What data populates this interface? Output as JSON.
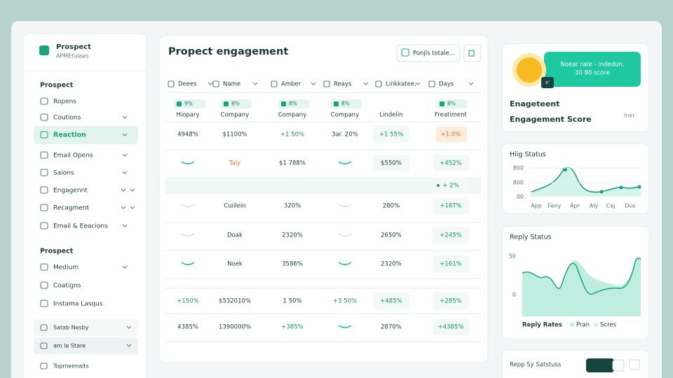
{
  "sidebar": {
    "brand": "Prospect",
    "subtitle": "APMEtulaes",
    "sections": [
      {
        "title": "Prospect",
        "items": [
          "Ropens",
          "Coutions",
          "Reaction",
          "Email Opens",
          "Saions",
          "Engagennt",
          "Recagment",
          "Email & Eeacions"
        ]
      },
      {
        "title": "Prospect",
        "items": [
          "Medium",
          "Coatigns",
          "Instama Lasqus"
        ]
      }
    ],
    "extra": [
      "Satab Nesby",
      "am le Stare",
      "Topmeimalts"
    ]
  },
  "main": {
    "title": "Propect engagement",
    "button": "Ponjls totale...",
    "columns": [
      "Deees",
      "Name",
      "Amber",
      "Reays",
      "Linkkatee.",
      "Days"
    ],
    "badges": [
      "9%",
      "8%",
      "8%",
      "8%",
      "8%"
    ],
    "sublabels": [
      "Hiopary",
      "Company",
      "Company",
      "Company",
      "Lindelin",
      "Freatiment"
    ],
    "rows": [
      [
        "4948%",
        "$1100%",
        "+1 50%",
        "3ar. 20%",
        "+1 55%",
        "+1.0%"
      ],
      [
        null,
        "Taly",
        "$1 788%",
        null,
        "$550%",
        "+452%"
      ],
      [
        null,
        null,
        null,
        null,
        null,
        "+ 2%"
      ],
      [
        null,
        "Cuiilein",
        "320%",
        null,
        "280%",
        "+16T%"
      ],
      [
        null,
        "Doak",
        "2320%",
        null,
        "2650%",
        "+245%"
      ],
      [
        null,
        "Noek",
        "3586%",
        null,
        "2320%",
        "+161%"
      ],
      [
        "+150%",
        "$532010%",
        "1 50%",
        "+3 50%",
        "+485%",
        "+285%"
      ],
      [
        "4385%",
        "1390000%",
        "+385%",
        null,
        "2870%",
        "+4385%"
      ]
    ]
  },
  "score_card": {
    "banner": "Noear rate - indedun.",
    "score": "30 80 score",
    "badge": "x'",
    "label": "Enageteent",
    "title": "Engagement Score",
    "link": "Iner"
  },
  "status_chart": {
    "title": "Hiig Status",
    "yticks": [
      "800",
      "800",
      "00"
    ],
    "xlabels": [
      "App",
      "Feny",
      "Apr",
      "Aly",
      "Caj",
      "Dus"
    ]
  },
  "reply_chart": {
    "title": "Reply Status",
    "yticks": [
      "50",
      "0"
    ],
    "legend": [
      "Reply Rates",
      "Pran",
      "Scres"
    ]
  },
  "bottom_card": {
    "title": "Repp Sy Satstuss"
  }
}
